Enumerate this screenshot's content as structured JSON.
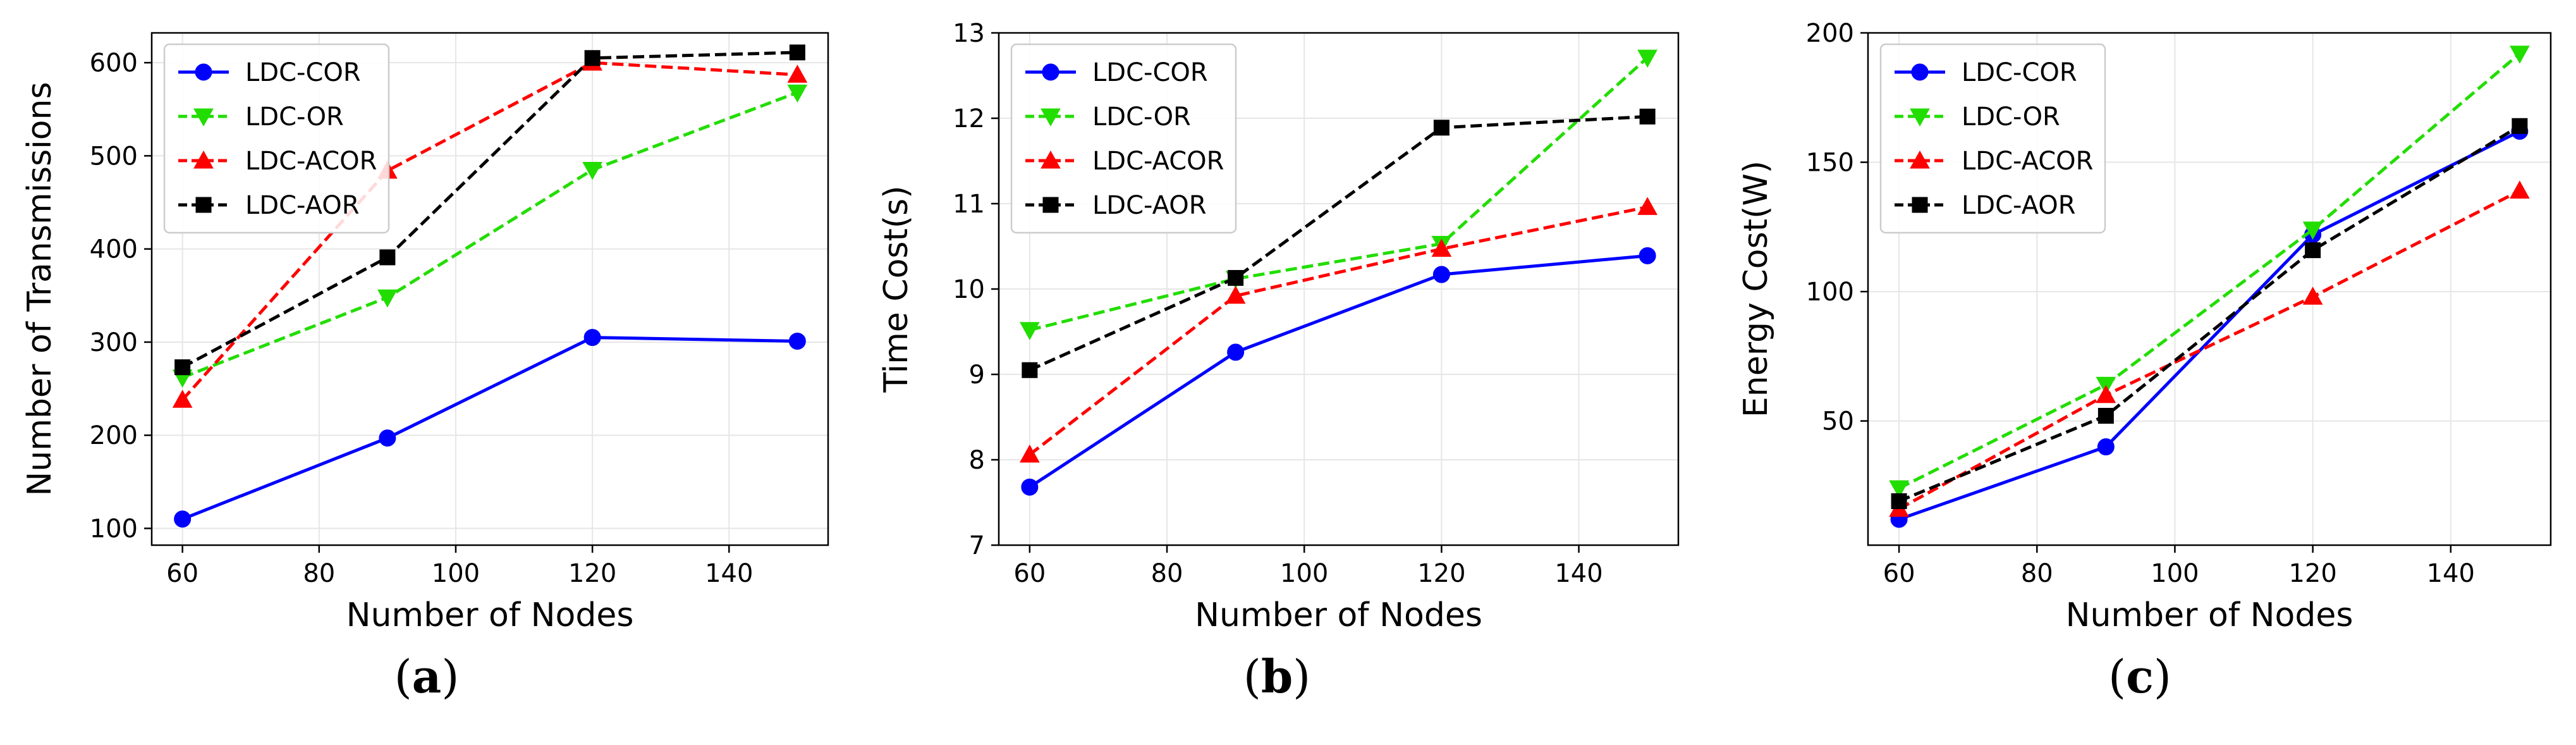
{
  "figure": {
    "colors": {
      "LDC-COR": "#0000ff",
      "LDC-OR": "#22dd00",
      "LDC-ACOR": "#ff0000",
      "LDC-AOR": "#000000"
    }
  },
  "chart_data": [
    {
      "type": "line",
      "caption": "(a)",
      "caption_letter": "a",
      "title": "",
      "xlabel": "Number of Nodes",
      "ylabel": "Number of Transmissions",
      "x": [
        60,
        90,
        120,
        150
      ],
      "xticks": [
        "60",
        "80",
        "100",
        "120",
        "140"
      ],
      "yticks": [
        "100",
        "200",
        "300",
        "400",
        "500",
        "600"
      ],
      "xlim": [
        55.5,
        154.5
      ],
      "ylim": [
        82,
        632
      ],
      "grid": true,
      "legend_position": "upper-left",
      "series": [
        {
          "name": "LDC-COR",
          "style": "solid",
          "marker": "circle",
          "color": "#0000ff",
          "values": [
            110,
            197,
            305,
            301
          ]
        },
        {
          "name": "LDC-OR",
          "style": "dashed",
          "marker": "triangle-down",
          "color": "#22dd00",
          "values": [
            262,
            348,
            485,
            568
          ]
        },
        {
          "name": "LDC-ACOR",
          "style": "dashed",
          "marker": "triangle-up",
          "color": "#ff0000",
          "values": [
            238,
            484,
            600,
            587
          ]
        },
        {
          "name": "LDC-AOR",
          "style": "dashed",
          "marker": "square",
          "color": "#000000",
          "values": [
            273,
            391,
            605,
            611
          ]
        }
      ]
    },
    {
      "type": "line",
      "caption": "(b)",
      "caption_letter": "b",
      "title": "",
      "xlabel": "Number of Nodes",
      "ylabel": "Time Cost(s)",
      "x": [
        60,
        90,
        120,
        150
      ],
      "xticks": [
        "60",
        "80",
        "100",
        "120",
        "140"
      ],
      "yticks": [
        "7",
        "8",
        "9",
        "10",
        "11",
        "12",
        "13"
      ],
      "xlim": [
        55.5,
        154.5
      ],
      "ylim": [
        7,
        13
      ],
      "grid": true,
      "legend_position": "upper-left",
      "series": [
        {
          "name": "LDC-COR",
          "style": "solid",
          "marker": "circle",
          "color": "#0000ff",
          "values": [
            7.68,
            9.26,
            10.17,
            10.39
          ]
        },
        {
          "name": "LDC-OR",
          "style": "dashed",
          "marker": "triangle-down",
          "color": "#22dd00",
          "values": [
            9.52,
            10.12,
            10.53,
            12.71
          ]
        },
        {
          "name": "LDC-ACOR",
          "style": "dashed",
          "marker": "triangle-up",
          "color": "#ff0000",
          "values": [
            8.06,
            9.92,
            10.47,
            10.96
          ]
        },
        {
          "name": "LDC-AOR",
          "style": "dashed",
          "marker": "square",
          "color": "#000000",
          "values": [
            9.05,
            10.13,
            11.89,
            12.02
          ]
        }
      ]
    },
    {
      "type": "line",
      "caption": "(c)",
      "caption_letter": "c",
      "title": "",
      "xlabel": "Number of Nodes",
      "ylabel": "Energy Cost(W)",
      "x": [
        60,
        90,
        120,
        150
      ],
      "xticks": [
        "60",
        "80",
        "100",
        "120",
        "140"
      ],
      "yticks": [
        "50",
        "100",
        "150",
        "200"
      ],
      "xlim": [
        55.5,
        154.5
      ],
      "ylim": [
        2,
        200
      ],
      "grid": true,
      "legend_position": "upper-left",
      "series": [
        {
          "name": "LDC-COR",
          "style": "solid",
          "marker": "circle",
          "color": "#0000ff",
          "values": [
            12,
            40,
            122,
            162
          ]
        },
        {
          "name": "LDC-OR",
          "style": "dashed",
          "marker": "triangle-down",
          "color": "#22dd00",
          "values": [
            24,
            64,
            124,
            192
          ]
        },
        {
          "name": "LDC-ACOR",
          "style": "dashed",
          "marker": "triangle-up",
          "color": "#ff0000",
          "values": [
            16,
            60,
            98,
            139
          ]
        },
        {
          "name": "LDC-AOR",
          "style": "dashed",
          "marker": "square",
          "color": "#000000",
          "values": [
            19,
            52,
            116,
            164
          ]
        }
      ]
    }
  ]
}
